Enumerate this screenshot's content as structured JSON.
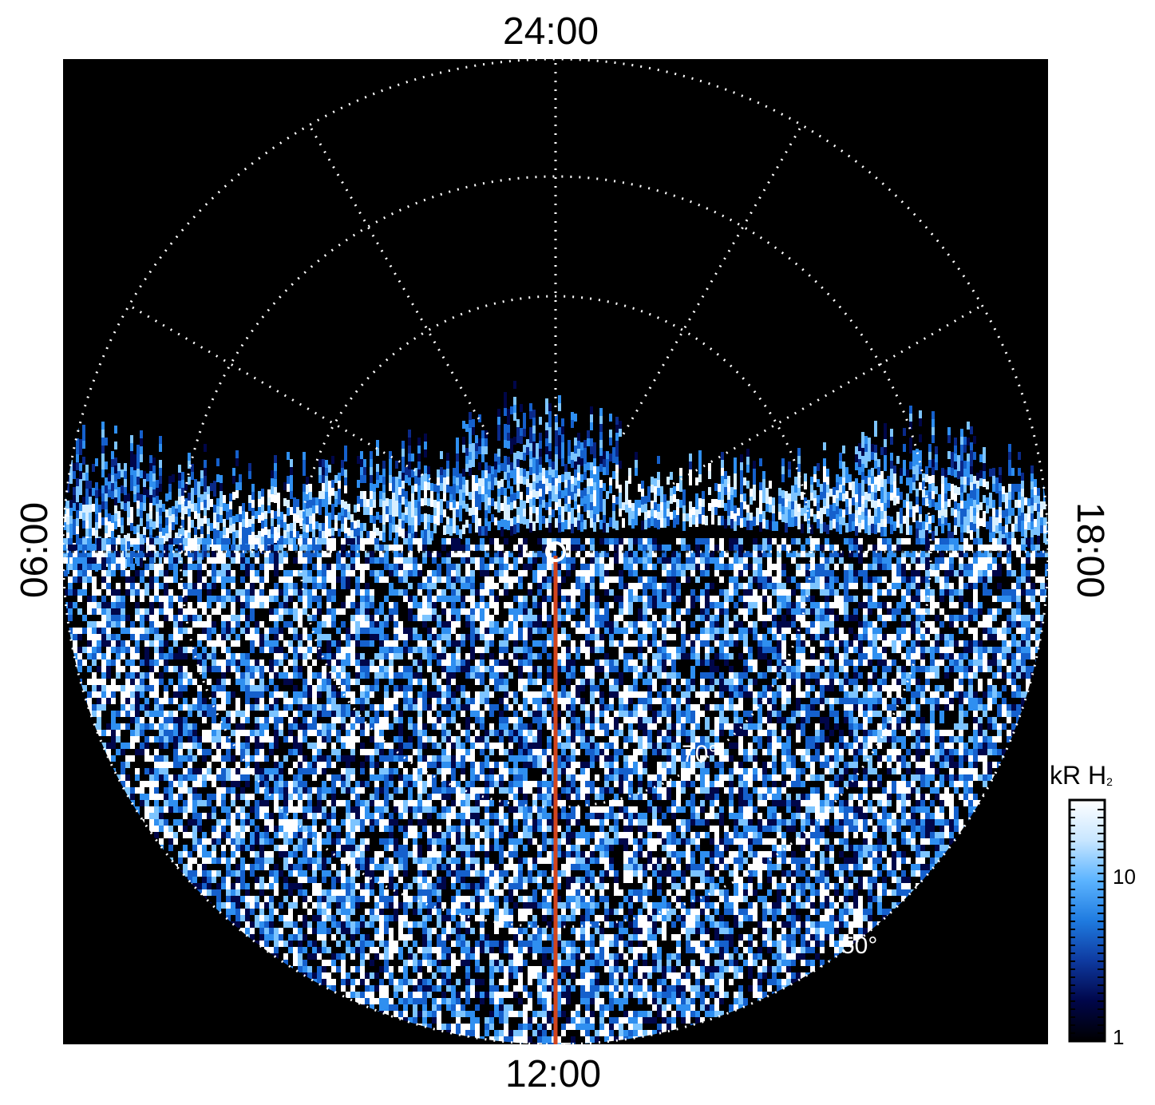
{
  "title": "",
  "labels": {
    "top": "24:00",
    "bottom": "12:00",
    "left": "06:00",
    "right": "18:00"
  },
  "latitude_labels": [
    "70°",
    "50°"
  ],
  "colorbar": {
    "unit_main": "kR H",
    "unit_sub": "2",
    "ticks": [
      "10",
      "1"
    ],
    "scale": "log",
    "range": [
      1,
      30
    ],
    "colors": [
      "#000000",
      "#00064a",
      "#0e3aa0",
      "#1f7be0",
      "#5cb4ff",
      "#c8e6ff",
      "#ffffff"
    ]
  },
  "colors": {
    "background": "#000000",
    "grid": "#ffffff",
    "meridian_line": "#d2451d"
  }
}
